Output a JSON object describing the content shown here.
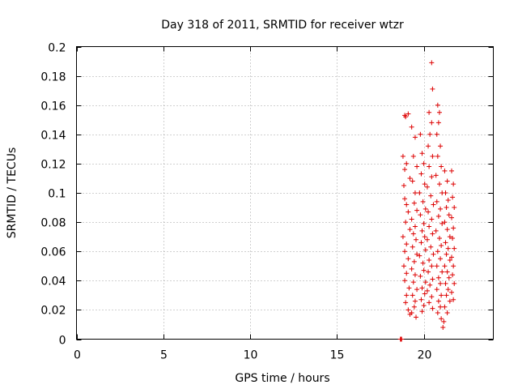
{
  "chart_data": {
    "type": "scatter",
    "title": "Day 318 of 2011, SRMTID for receiver wtzr",
    "xlabel": "GPS time / hours",
    "ylabel": "SRMTID / TECUs",
    "xlim": [
      0,
      24
    ],
    "ylim": [
      0,
      0.2
    ],
    "xticks": [
      0,
      5,
      10,
      15,
      20
    ],
    "xtick_labels": [
      "0",
      "5",
      "10",
      "15",
      "20"
    ],
    "yticks": [
      0,
      0.02,
      0.04,
      0.06,
      0.08,
      0.1,
      0.12,
      0.14,
      0.16,
      0.18,
      0.2
    ],
    "ytick_labels": [
      "0",
      "0.02",
      "0.04",
      "0.06",
      "0.08",
      "0.1",
      "0.12",
      "0.14",
      "0.16",
      "0.18",
      "0.2"
    ],
    "grid": true,
    "marker": "+",
    "color": "#dd0000",
    "series": [
      {
        "name": "SRMTID",
        "points": [
          [
            18.65,
            0.0
          ],
          [
            18.7,
            0.0
          ],
          [
            18.72,
            0.0
          ],
          [
            18.68,
            0.0
          ],
          [
            18.9,
            0.153
          ],
          [
            18.95,
            0.152
          ],
          [
            19.1,
            0.154
          ],
          [
            18.8,
            0.125
          ],
          [
            19.0,
            0.12
          ],
          [
            18.9,
            0.116
          ],
          [
            19.2,
            0.11
          ],
          [
            18.85,
            0.105
          ],
          [
            18.9,
            0.096
          ],
          [
            19.0,
            0.092
          ],
          [
            19.1,
            0.087
          ],
          [
            18.95,
            0.08
          ],
          [
            19.2,
            0.075
          ],
          [
            18.8,
            0.07
          ],
          [
            19.0,
            0.065
          ],
          [
            18.9,
            0.06
          ],
          [
            19.1,
            0.055
          ],
          [
            18.85,
            0.05
          ],
          [
            19.0,
            0.045
          ],
          [
            18.9,
            0.04
          ],
          [
            19.15,
            0.035
          ],
          [
            19.0,
            0.03
          ],
          [
            18.95,
            0.025
          ],
          [
            19.1,
            0.02
          ],
          [
            19.2,
            0.017
          ],
          [
            19.3,
            0.145
          ],
          [
            19.5,
            0.138
          ],
          [
            19.4,
            0.125
          ],
          [
            19.6,
            0.118
          ],
          [
            19.35,
            0.108
          ],
          [
            19.5,
            0.1
          ],
          [
            19.45,
            0.093
          ],
          [
            19.6,
            0.088
          ],
          [
            19.3,
            0.082
          ],
          [
            19.5,
            0.077
          ],
          [
            19.4,
            0.072
          ],
          [
            19.55,
            0.068
          ],
          [
            19.35,
            0.063
          ],
          [
            19.6,
            0.058
          ],
          [
            19.45,
            0.053
          ],
          [
            19.3,
            0.048
          ],
          [
            19.5,
            0.044
          ],
          [
            19.4,
            0.039
          ],
          [
            19.6,
            0.034
          ],
          [
            19.35,
            0.03
          ],
          [
            19.5,
            0.026
          ],
          [
            19.45,
            0.022
          ],
          [
            19.3,
            0.018
          ],
          [
            19.55,
            0.015
          ],
          [
            19.8,
            0.14
          ],
          [
            19.9,
            0.127
          ],
          [
            20.0,
            0.12
          ],
          [
            19.85,
            0.113
          ],
          [
            20.05,
            0.106
          ],
          [
            19.75,
            0.1
          ],
          [
            19.95,
            0.094
          ],
          [
            20.1,
            0.089
          ],
          [
            19.8,
            0.085
          ],
          [
            20.0,
            0.079
          ],
          [
            19.9,
            0.074
          ],
          [
            20.05,
            0.07
          ],
          [
            19.85,
            0.066
          ],
          [
            20.1,
            0.061
          ],
          [
            19.75,
            0.057
          ],
          [
            19.95,
            0.052
          ],
          [
            20.0,
            0.047
          ],
          [
            19.8,
            0.043
          ],
          [
            20.1,
            0.039
          ],
          [
            19.9,
            0.035
          ],
          [
            20.05,
            0.031
          ],
          [
            19.85,
            0.027
          ],
          [
            20.0,
            0.023
          ],
          [
            19.9,
            0.019
          ],
          [
            20.3,
            0.155
          ],
          [
            20.45,
            0.148
          ],
          [
            20.35,
            0.14
          ],
          [
            20.25,
            0.132
          ],
          [
            20.5,
            0.125
          ],
          [
            20.3,
            0.118
          ],
          [
            20.45,
            0.111
          ],
          [
            20.2,
            0.104
          ],
          [
            20.4,
            0.098
          ],
          [
            20.55,
            0.092
          ],
          [
            20.25,
            0.087
          ],
          [
            20.45,
            0.082
          ],
          [
            20.3,
            0.077
          ],
          [
            20.5,
            0.072
          ],
          [
            20.2,
            0.068
          ],
          [
            20.4,
            0.063
          ],
          [
            20.55,
            0.058
          ],
          [
            20.3,
            0.054
          ],
          [
            20.45,
            0.05
          ],
          [
            20.25,
            0.046
          ],
          [
            20.5,
            0.041
          ],
          [
            20.35,
            0.037
          ],
          [
            20.2,
            0.033
          ],
          [
            20.45,
            0.029
          ],
          [
            20.3,
            0.025
          ],
          [
            20.5,
            0.021
          ],
          [
            20.45,
            0.189
          ],
          [
            20.5,
            0.171
          ],
          [
            20.8,
            0.16
          ],
          [
            20.9,
            0.155
          ],
          [
            20.85,
            0.148
          ],
          [
            20.75,
            0.14
          ],
          [
            20.95,
            0.132
          ],
          [
            20.8,
            0.125
          ],
          [
            21.0,
            0.118
          ],
          [
            20.7,
            0.112
          ],
          [
            20.9,
            0.106
          ],
          [
            21.05,
            0.1
          ],
          [
            20.75,
            0.094
          ],
          [
            20.95,
            0.089
          ],
          [
            20.85,
            0.084
          ],
          [
            21.05,
            0.079
          ],
          [
            20.7,
            0.074
          ],
          [
            20.9,
            0.069
          ],
          [
            21.0,
            0.064
          ],
          [
            20.8,
            0.06
          ],
          [
            20.95,
            0.055
          ],
          [
            20.75,
            0.05
          ],
          [
            21.05,
            0.046
          ],
          [
            20.85,
            0.042
          ],
          [
            20.95,
            0.038
          ],
          [
            20.75,
            0.034
          ],
          [
            21.0,
            0.03
          ],
          [
            20.85,
            0.026
          ],
          [
            20.95,
            0.022
          ],
          [
            20.8,
            0.018
          ],
          [
            21.0,
            0.014
          ],
          [
            21.2,
            0.115
          ],
          [
            21.35,
            0.108
          ],
          [
            21.25,
            0.1
          ],
          [
            21.4,
            0.095
          ],
          [
            21.3,
            0.09
          ],
          [
            21.45,
            0.085
          ],
          [
            21.2,
            0.08
          ],
          [
            21.35,
            0.075
          ],
          [
            21.5,
            0.07
          ],
          [
            21.25,
            0.066
          ],
          [
            21.4,
            0.062
          ],
          [
            21.3,
            0.058
          ],
          [
            21.5,
            0.054
          ],
          [
            21.2,
            0.05
          ],
          [
            21.35,
            0.046
          ],
          [
            21.45,
            0.042
          ],
          [
            21.25,
            0.038
          ],
          [
            21.4,
            0.034
          ],
          [
            21.3,
            0.03
          ],
          [
            21.5,
            0.026
          ],
          [
            21.2,
            0.022
          ],
          [
            21.35,
            0.018
          ],
          [
            21.15,
            0.012
          ],
          [
            21.1,
            0.008
          ],
          [
            21.6,
            0.115
          ],
          [
            21.7,
            0.106
          ],
          [
            21.65,
            0.097
          ],
          [
            21.75,
            0.09
          ],
          [
            21.6,
            0.083
          ],
          [
            21.7,
            0.076
          ],
          [
            21.65,
            0.069
          ],
          [
            21.75,
            0.062
          ],
          [
            21.6,
            0.056
          ],
          [
            21.7,
            0.05
          ],
          [
            21.65,
            0.044
          ],
          [
            21.75,
            0.038
          ],
          [
            21.6,
            0.032
          ],
          [
            21.7,
            0.027
          ]
        ]
      }
    ]
  }
}
